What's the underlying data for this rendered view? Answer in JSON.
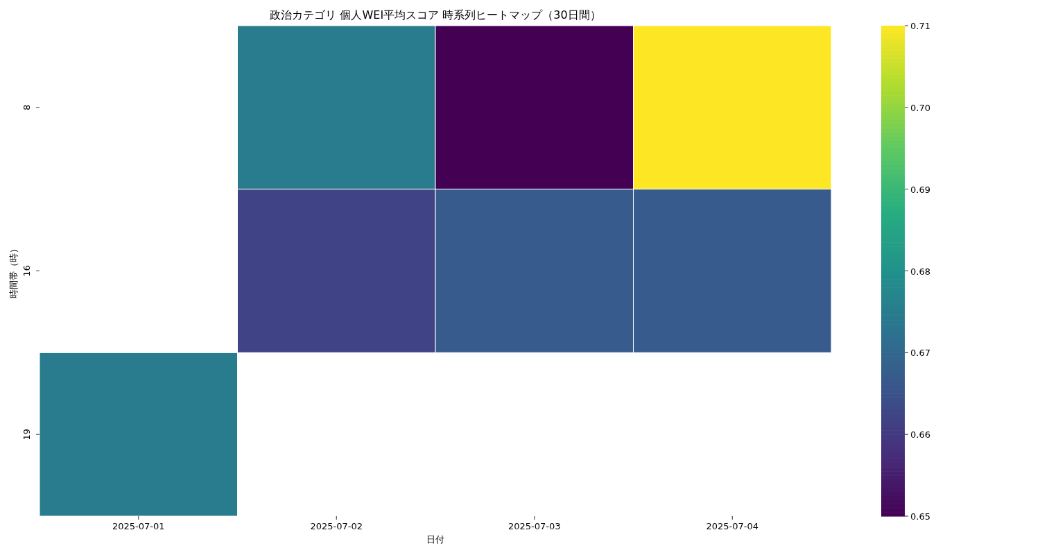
{
  "chart_data": {
    "type": "heatmap",
    "title": "政治カテゴリ 個人WEI平均スコア 時系列ヒートマップ（30日間）",
    "xlabel": "日付",
    "ylabel": "時間帯（時）",
    "categories": [
      "2025-07-01",
      "2025-07-02",
      "2025-07-03",
      "2025-07-04"
    ],
    "y_categories": [
      "8",
      "16",
      "19"
    ],
    "cells": [
      [
        null,
        0.675,
        0.65,
        0.71
      ],
      [
        null,
        0.662,
        0.667,
        0.667
      ],
      [
        0.675,
        null,
        null,
        null
      ]
    ],
    "clim": [
      0.65,
      0.71
    ],
    "cticks": [
      0.65,
      0.66,
      0.67,
      0.68,
      0.69,
      {
        "value": 0.7,
        "label": "0.70"
      },
      0.71
    ]
  }
}
